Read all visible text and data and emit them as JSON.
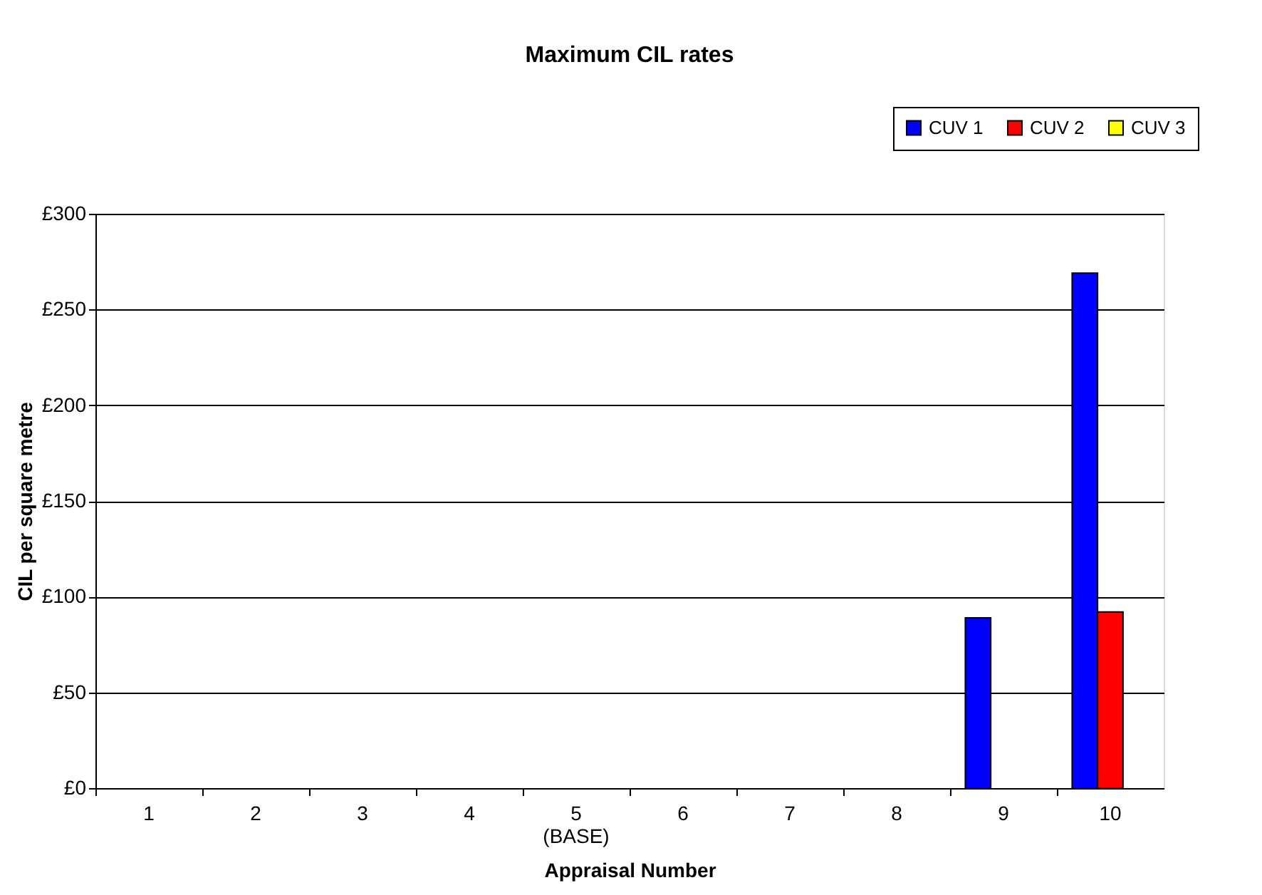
{
  "chart_data": {
    "type": "bar",
    "title": "Maximum CIL rates",
    "xlabel": "Appraisal Number",
    "ylabel": "CIL per square metre",
    "categories": [
      "1",
      "2",
      "3",
      "4",
      "5\n(BASE)",
      "6",
      "7",
      "8",
      "9",
      "10"
    ],
    "series": [
      {
        "name": "CUV 1",
        "color": "#0000ff",
        "values": [
          0,
          0,
          0,
          0,
          0,
          0,
          0,
          0,
          89,
          269
        ]
      },
      {
        "name": "CUV 2",
        "color": "#ff0000",
        "values": [
          0,
          0,
          0,
          0,
          0,
          0,
          0,
          0,
          0,
          92
        ]
      },
      {
        "name": "CUV 3",
        "color": "#ffff00",
        "values": [
          0,
          0,
          0,
          0,
          0,
          0,
          0,
          0,
          0,
          0
        ]
      }
    ],
    "ylim": [
      0,
      300
    ],
    "yticks": [
      {
        "value": 0,
        "label": "£0"
      },
      {
        "value": 50,
        "label": "£50"
      },
      {
        "value": 100,
        "label": "£100"
      },
      {
        "value": 150,
        "label": "£150"
      },
      {
        "value": 200,
        "label": "£200"
      },
      {
        "value": 250,
        "label": "£250"
      },
      {
        "value": 300,
        "label": "£300"
      }
    ],
    "grid": "y",
    "legend": "top right"
  }
}
